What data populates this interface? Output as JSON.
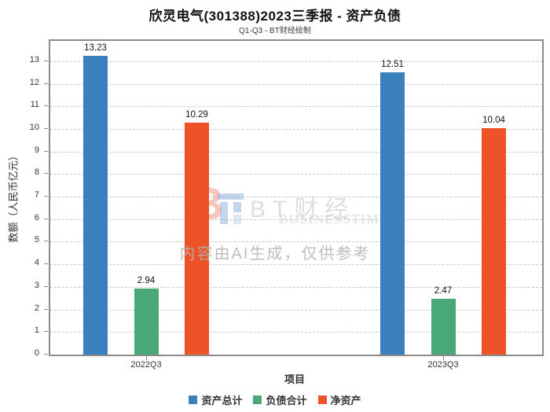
{
  "header": {
    "title": "欣灵电气(301388)2023三季报 - 资产负债",
    "subtitle": "Q1-Q3 - BT财经绘制"
  },
  "chart_data": {
    "type": "bar",
    "title": "欣灵电气(301388)2023三季报 - 资产负债",
    "subtitle": "Q1-Q3 - BT财经绘制",
    "categories": [
      "2022Q3",
      "2023Q3"
    ],
    "series": [
      {
        "name": "资产总计",
        "color": "#3a80bd",
        "values": [
          13.23,
          12.51
        ]
      },
      {
        "name": "负债合计",
        "color": "#48a878",
        "values": [
          2.94,
          2.47
        ]
      },
      {
        "name": "净资产",
        "color": "#ed5327",
        "values": [
          10.29,
          10.04
        ]
      }
    ],
    "xlabel": "项目",
    "ylabel": "数额（人民币亿元）",
    "ylim": [
      0,
      13.9
    ],
    "ytick_step": 1,
    "yticks": [
      0,
      1,
      2,
      3,
      4,
      5,
      6,
      7,
      8,
      9,
      10,
      11,
      12,
      13
    ],
    "grid": "horizontal-dashed",
    "legend_position": "bottom",
    "value_label_decimals": 2
  },
  "watermark": {
    "brand_cn": "BT财经",
    "brand_en": "BUSINESSTIMES",
    "ai_notice": "内容由AI生成，仅供参考"
  }
}
